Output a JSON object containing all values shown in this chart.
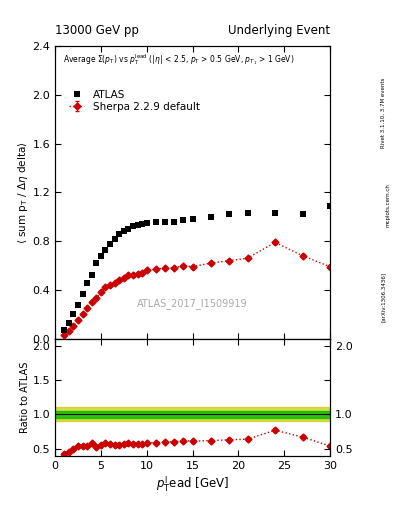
{
  "title_left": "13000 GeV pp",
  "title_right": "Underlying Event",
  "annotation": "ATLAS_2017_I1509919",
  "right_label_top": "Rivet 3.1.10, 3.7M events",
  "right_label_mid": "mcplots.cern.ch",
  "right_label_bot": "[arXiv:1306.3436]",
  "legend_entries": [
    "ATLAS",
    "Sherpa 2.2.9 default"
  ],
  "atlas_x": [
    1.0,
    1.5,
    2.0,
    2.5,
    3.0,
    3.5,
    4.0,
    4.5,
    5.0,
    5.5,
    6.0,
    6.5,
    7.0,
    7.5,
    8.0,
    8.5,
    9.0,
    9.5,
    10.0,
    11.0,
    12.0,
    13.0,
    14.0,
    15.0,
    17.0,
    19.0,
    21.0,
    24.0,
    27.0,
    30.0
  ],
  "atlas_y": [
    0.07,
    0.13,
    0.2,
    0.28,
    0.37,
    0.46,
    0.52,
    0.62,
    0.68,
    0.73,
    0.78,
    0.82,
    0.86,
    0.88,
    0.9,
    0.92,
    0.93,
    0.94,
    0.95,
    0.96,
    0.96,
    0.96,
    0.97,
    0.98,
    1.0,
    1.02,
    1.03,
    1.03,
    1.02,
    1.09
  ],
  "sherpa_x": [
    1.0,
    1.5,
    2.0,
    2.5,
    3.0,
    3.5,
    4.0,
    4.5,
    5.0,
    5.5,
    6.0,
    6.5,
    7.0,
    7.5,
    8.0,
    8.5,
    9.0,
    9.5,
    10.0,
    11.0,
    12.0,
    13.0,
    14.0,
    15.0,
    17.0,
    19.0,
    21.0,
    24.0,
    27.0,
    30.0
  ],
  "sherpa_y": [
    0.03,
    0.06,
    0.1,
    0.15,
    0.2,
    0.25,
    0.3,
    0.33,
    0.38,
    0.42,
    0.44,
    0.46,
    0.48,
    0.5,
    0.52,
    0.52,
    0.53,
    0.54,
    0.56,
    0.57,
    0.58,
    0.58,
    0.6,
    0.59,
    0.62,
    0.64,
    0.66,
    0.79,
    0.68,
    0.59
  ],
  "sherpa_yerr": [
    0.003,
    0.003,
    0.003,
    0.003,
    0.003,
    0.003,
    0.003,
    0.003,
    0.003,
    0.003,
    0.003,
    0.003,
    0.003,
    0.003,
    0.003,
    0.003,
    0.003,
    0.003,
    0.003,
    0.003,
    0.003,
    0.003,
    0.003,
    0.003,
    0.005,
    0.005,
    0.005,
    0.015,
    0.015,
    0.015
  ],
  "ratio_sherpa_y": [
    0.43,
    0.46,
    0.5,
    0.54,
    0.54,
    0.54,
    0.58,
    0.53,
    0.56,
    0.58,
    0.57,
    0.56,
    0.56,
    0.57,
    0.58,
    0.57,
    0.57,
    0.57,
    0.59,
    0.59,
    0.6,
    0.6,
    0.62,
    0.61,
    0.62,
    0.63,
    0.64,
    0.77,
    0.67,
    0.54
  ],
  "ratio_sherpa_yerr": [
    0.02,
    0.02,
    0.02,
    0.02,
    0.02,
    0.02,
    0.02,
    0.02,
    0.02,
    0.02,
    0.02,
    0.02,
    0.02,
    0.02,
    0.02,
    0.02,
    0.02,
    0.02,
    0.02,
    0.02,
    0.02,
    0.02,
    0.02,
    0.02,
    0.02,
    0.02,
    0.02,
    0.03,
    0.03,
    0.03
  ],
  "atlas_color": "#000000",
  "sherpa_color": "#cc0000",
  "ratio_band_green": "#00bb00",
  "ratio_band_yellow": "#cccc00",
  "ylim_main": [
    0.0,
    2.4
  ],
  "ylim_ratio": [
    0.4,
    2.1
  ],
  "xlim": [
    0,
    30
  ],
  "main_yticks": [
    0.0,
    0.4,
    0.8,
    1.2,
    1.6,
    2.0,
    2.4
  ],
  "ratio_yticks": [
    0.5,
    1.0,
    1.5,
    2.0
  ]
}
